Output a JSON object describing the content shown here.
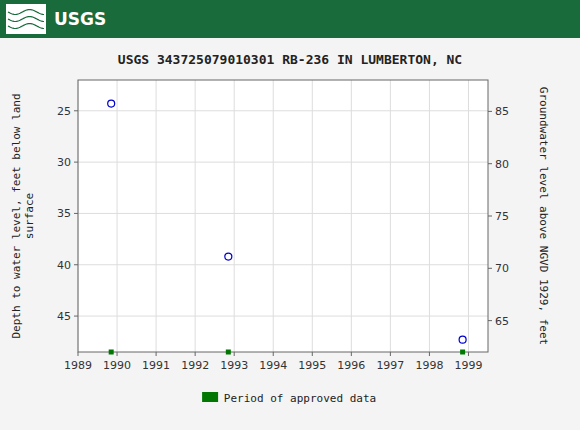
{
  "chart_data": {
    "type": "scatter",
    "title": "USGS 343725079010301 RB-236 IN LUMBERTON, NC",
    "annotations": [
      "USGS"
    ],
    "x_label": null,
    "y_label": "Depth to water level, feet below land\nsurface",
    "y2_label": "Groundwater level above NGVD 1929, feet",
    "x": [
      1989.85,
      1992.85,
      1998.85
    ],
    "series": [
      {
        "values": [
          24.3,
          39.2,
          47.3
        ],
        "color": "#0000cc",
        "marker": "circle"
      }
    ],
    "approved_periods": {
      "name": "Period of approved data",
      "color": "#007700",
      "marker": "square",
      "x": [
        1989.85,
        1992.85,
        1998.85
      ]
    },
    "xlim": [
      1989.0,
      1999.5
    ],
    "xticks": [
      1989,
      1990,
      1991,
      1992,
      1993,
      1994,
      1995,
      1996,
      1997,
      1998,
      1999
    ],
    "ylim": [
      48.5,
      22.0
    ],
    "yticks": [
      25,
      30,
      35,
      40,
      45
    ],
    "y2lim": [
      62.0,
      88.0
    ],
    "y2ticks": [
      65,
      70,
      75,
      80,
      85
    ],
    "grid": true,
    "legend": "bottom"
  }
}
